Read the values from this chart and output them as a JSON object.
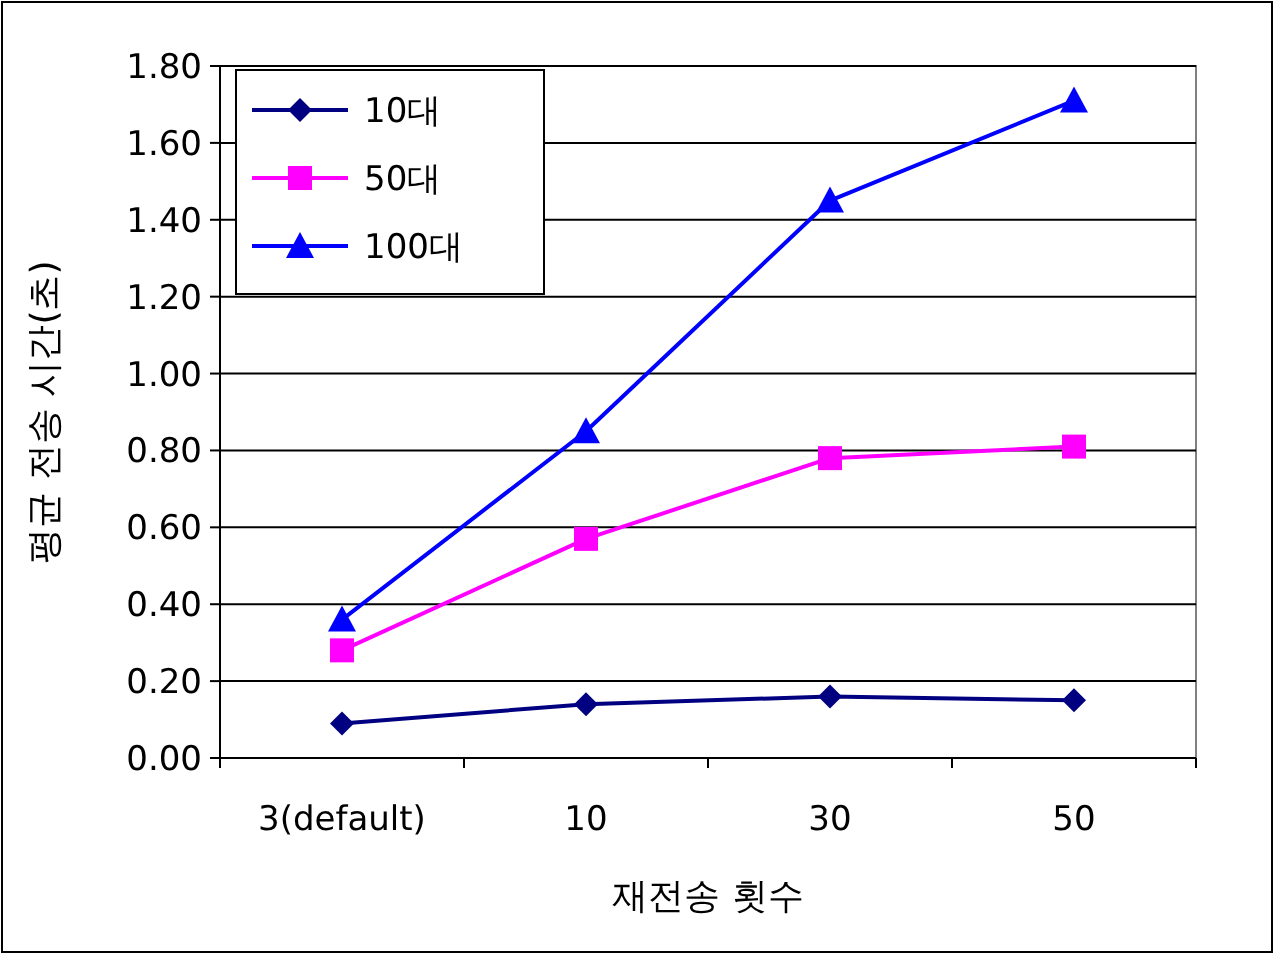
{
  "chart_data": {
    "type": "line",
    "xlabel": "재전송 횟수",
    "ylabel": "평균 전송 시간(초)",
    "categories": [
      "3(default)",
      "10",
      "30",
      "50"
    ],
    "series": [
      {
        "name": "10대",
        "color": "#000080",
        "marker": "diamond",
        "values": [
          0.09,
          0.14,
          0.16,
          0.15
        ]
      },
      {
        "name": "50대",
        "color": "#ff00ff",
        "marker": "square",
        "values": [
          0.28,
          0.57,
          0.78,
          0.81
        ]
      },
      {
        "name": "100대",
        "color": "#0000ff",
        "marker": "triangle",
        "values": [
          0.36,
          0.85,
          1.45,
          1.71
        ]
      }
    ],
    "ylim": [
      0,
      1.8
    ],
    "yticks": [
      {
        "value": 0,
        "label": "0.00"
      },
      {
        "value": 0.2,
        "label": "0.20"
      },
      {
        "value": 0.4,
        "label": "0.40"
      },
      {
        "value": 0.6,
        "label": "0.60"
      },
      {
        "value": 0.8,
        "label": "0.80"
      },
      {
        "value": 1.0,
        "label": "1.00"
      },
      {
        "value": 1.2,
        "label": "1.20"
      },
      {
        "value": 1.4,
        "label": "1.40"
      },
      {
        "value": 1.6,
        "label": "1.60"
      },
      {
        "value": 1.8,
        "label": "1.80"
      }
    ],
    "grid": "y",
    "legend": "top left",
    "line_style": "solid"
  }
}
